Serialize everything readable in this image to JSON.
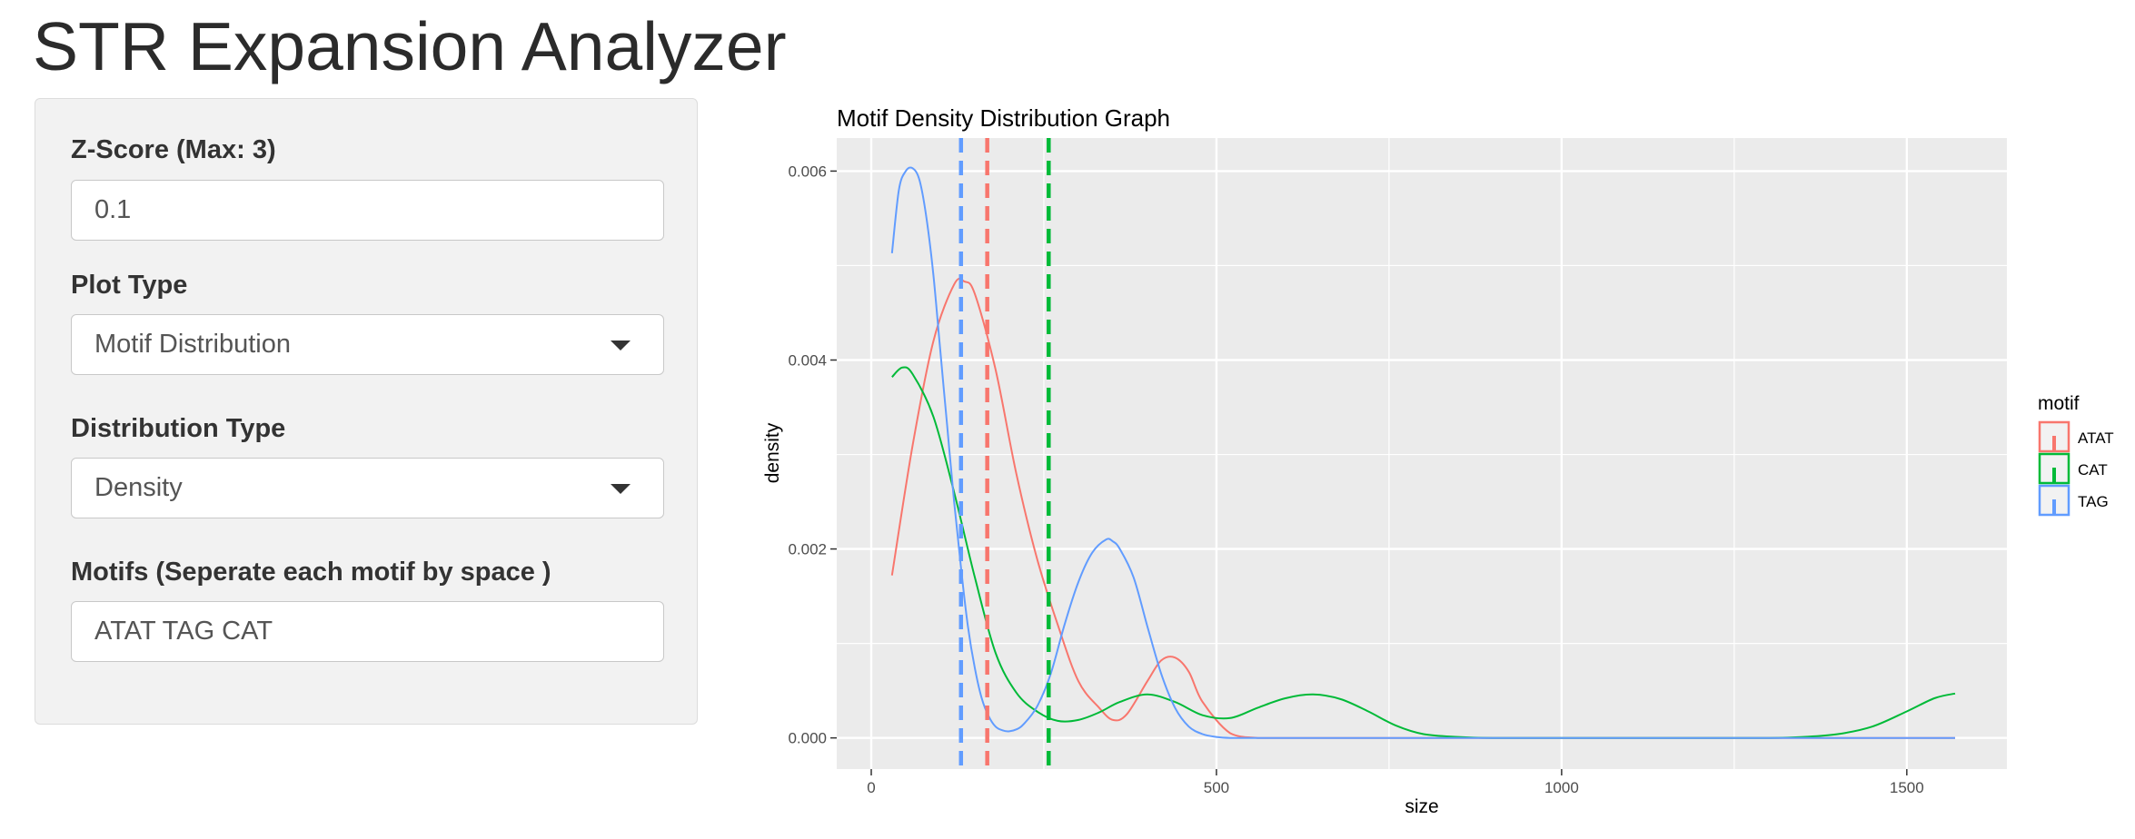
{
  "app": {
    "title": "STR Expansion Analyzer"
  },
  "sidebar": {
    "zscore": {
      "label": "Z-Score (Max: 3)",
      "value": "0.1"
    },
    "plot_type": {
      "label": "Plot Type",
      "selected": "Motif Distribution"
    },
    "distribution_type": {
      "label": "Distribution Type",
      "selected": "Density"
    },
    "motifs": {
      "label": "Motifs (Seperate each motif by space )",
      "value": "ATAT TAG CAT"
    }
  },
  "colors": {
    "panel_background": "#ebebeb",
    "grid": "#ffffff",
    "ATAT": "#f8766d",
    "CAT": "#00ba38",
    "TAG": "#619cff"
  },
  "chart_data": {
    "type": "line",
    "title": "Motif Density Distribution Graph",
    "xlabel": "size",
    "ylabel": "density",
    "xlim": [
      -50,
      1645
    ],
    "ylim": [
      -0.00033,
      0.00635
    ],
    "x_ticks": [
      0,
      500,
      1000,
      1500
    ],
    "x_tick_labels": [
      "0",
      "500",
      "1000",
      "1500"
    ],
    "y_ticks": [
      0,
      0.002,
      0.004,
      0.006
    ],
    "y_tick_labels": [
      "0.000",
      "0.002",
      "0.004",
      "0.006"
    ],
    "grid": true,
    "legend": {
      "title": "motif",
      "position": "right",
      "entries": [
        "ATAT",
        "CAT",
        "TAG"
      ]
    },
    "series": [
      {
        "name": "ATAT",
        "color": "#f8766d",
        "vline": 168,
        "x": [
          30,
          60,
          90,
          120,
          135,
          150,
          180,
          210,
          240,
          270,
          300,
          330,
          350,
          370,
          400,
          420,
          440,
          460,
          480,
          520,
          560,
          600,
          700,
          800,
          1000,
          1200,
          1400,
          1570
        ],
        "y": [
          0.00172,
          0.0031,
          0.0042,
          0.0048,
          0.00483,
          0.0047,
          0.0039,
          0.0028,
          0.0019,
          0.0012,
          0.0006,
          0.00032,
          0.00019,
          0.00025,
          0.0006,
          0.00082,
          0.00085,
          0.0007,
          0.00038,
          5e-05,
          0,
          0,
          0,
          0,
          0,
          0,
          0,
          0
        ]
      },
      {
        "name": "CAT",
        "color": "#00ba38",
        "vline": 257,
        "x": [
          30,
          45,
          60,
          90,
          120,
          150,
          180,
          210,
          240,
          270,
          300,
          330,
          360,
          400,
          440,
          480,
          520,
          560,
          600,
          640,
          680,
          720,
          760,
          800,
          850,
          900,
          1000,
          1100,
          1200,
          1300,
          1350,
          1400,
          1450,
          1500,
          1540,
          1570
        ],
        "y": [
          0.00382,
          0.00392,
          0.00385,
          0.0034,
          0.0026,
          0.0017,
          0.0009,
          0.00048,
          0.00028,
          0.00018,
          0.00019,
          0.00027,
          0.00038,
          0.00046,
          0.00038,
          0.00024,
          0.00021,
          0.00032,
          0.00042,
          0.00046,
          0.00041,
          0.00028,
          0.00013,
          4e-05,
          1e-05,
          0,
          0,
          0,
          0,
          0,
          1e-05,
          4e-05,
          0.00012,
          0.00028,
          0.00042,
          0.00047
        ]
      },
      {
        "name": "TAG",
        "color": "#619cff",
        "vline": 130,
        "x": [
          30,
          40,
          50,
          60,
          70,
          80,
          90,
          100,
          110,
          120,
          130,
          140,
          150,
          160,
          170,
          180,
          190,
          200,
          210,
          220,
          240,
          260,
          280,
          300,
          320,
          340,
          350,
          360,
          380,
          400,
          420,
          440,
          460,
          480,
          500,
          520,
          560,
          600,
          800,
          1000,
          1200,
          1400,
          1570
        ],
        "y": [
          0.00513,
          0.0058,
          0.006,
          0.00603,
          0.0059,
          0.0055,
          0.0049,
          0.0041,
          0.0033,
          0.0025,
          0.0018,
          0.00118,
          0.00074,
          0.00042,
          0.00023,
          0.00012,
          8e-05,
          7e-05,
          9e-05,
          0.00014,
          0.00033,
          0.00068,
          0.0012,
          0.00165,
          0.00196,
          0.0021,
          0.00208,
          0.002,
          0.0017,
          0.00118,
          0.00068,
          0.00032,
          0.00012,
          4e-05,
          1e-05,
          0,
          0,
          0,
          0,
          0,
          0,
          0,
          0
        ]
      }
    ]
  }
}
